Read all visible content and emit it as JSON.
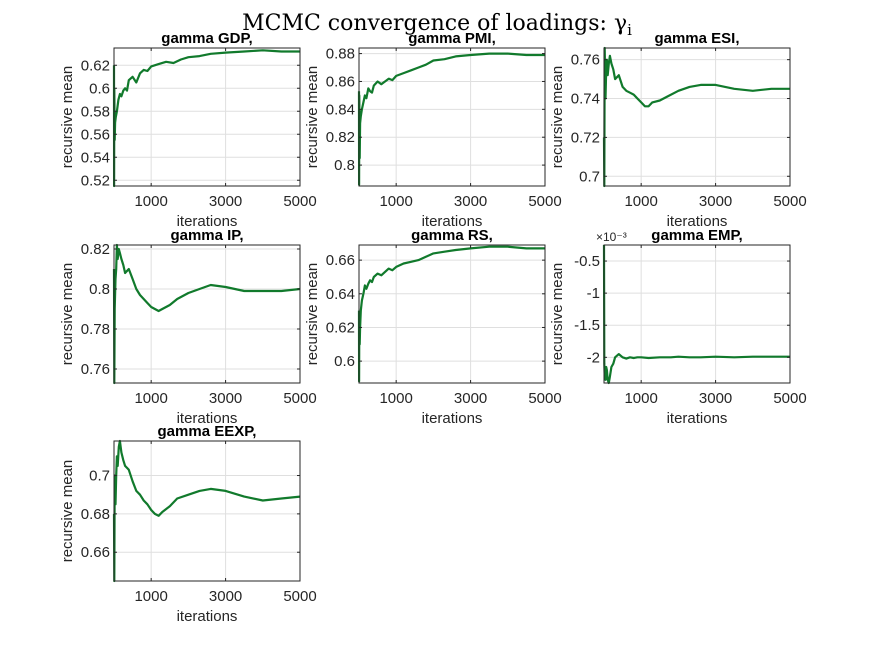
{
  "figure": {
    "title": "MCMC convergence of loadings: γ",
    "title_subscript": "i"
  },
  "colors": {
    "line": "#117a2c",
    "grid": "#dfdfdf",
    "axis": "#262626"
  },
  "chart_data": [
    {
      "type": "line",
      "title": "gamma GDP,",
      "xlabel": "iterations",
      "ylabel": "recursive mean",
      "xlim": [
        1,
        5000
      ],
      "ylim": [
        0.515,
        0.635
      ],
      "xticks": [
        1000,
        3000,
        5000
      ],
      "yticks": [
        0.52,
        0.54,
        0.56,
        0.58,
        0.6,
        0.62
      ],
      "ytick_labels": [
        "0.52",
        "0.54",
        "0.56",
        "0.58",
        "0.6",
        "0.62"
      ],
      "exponent_label": "",
      "grid": true,
      "x": [
        1,
        5,
        10,
        20,
        30,
        50,
        80,
        120,
        160,
        200,
        250,
        300,
        350,
        400,
        500,
        600,
        700,
        800,
        900,
        1000,
        1200,
        1400,
        1600,
        1800,
        2000,
        2300,
        2600,
        3000,
        3500,
        4000,
        4500,
        5000
      ],
      "y": [
        0.62,
        0.515,
        0.6,
        0.555,
        0.57,
        0.575,
        0.58,
        0.59,
        0.595,
        0.593,
        0.598,
        0.6,
        0.598,
        0.607,
        0.61,
        0.605,
        0.613,
        0.616,
        0.615,
        0.619,
        0.621,
        0.623,
        0.622,
        0.625,
        0.627,
        0.628,
        0.63,
        0.631,
        0.632,
        0.633,
        0.632,
        0.632
      ]
    },
    {
      "type": "line",
      "title": "gamma PMI,",
      "xlabel": "iterations",
      "ylabel": "recursive mean",
      "xlim": [
        1,
        5000
      ],
      "ylim": [
        0.785,
        0.884
      ],
      "xticks": [
        1000,
        3000,
        5000
      ],
      "yticks": [
        0.8,
        0.82,
        0.84,
        0.86,
        0.88
      ],
      "ytick_labels": [
        "0.8",
        "0.82",
        "0.84",
        "0.86",
        "0.88"
      ],
      "exponent_label": "",
      "grid": true,
      "x": [
        1,
        5,
        10,
        20,
        30,
        50,
        80,
        120,
        160,
        200,
        250,
        300,
        350,
        400,
        500,
        600,
        700,
        800,
        900,
        1000,
        1200,
        1400,
        1600,
        1800,
        2000,
        2300,
        2600,
        3000,
        3500,
        4000,
        4500,
        5000
      ],
      "y": [
        0.853,
        0.786,
        0.85,
        0.805,
        0.83,
        0.835,
        0.84,
        0.845,
        0.85,
        0.848,
        0.855,
        0.853,
        0.852,
        0.857,
        0.86,
        0.858,
        0.86,
        0.862,
        0.861,
        0.864,
        0.866,
        0.868,
        0.87,
        0.872,
        0.875,
        0.876,
        0.878,
        0.879,
        0.88,
        0.88,
        0.879,
        0.879
      ]
    },
    {
      "type": "line",
      "title": "gamma ESI,",
      "xlabel": "iterations",
      "ylabel": "recursive mean",
      "xlim": [
        1,
        5000
      ],
      "ylim": [
        0.695,
        0.766
      ],
      "xticks": [
        1000,
        3000,
        5000
      ],
      "yticks": [
        0.7,
        0.72,
        0.74,
        0.76
      ],
      "ytick_labels": [
        "0.7",
        "0.72",
        "0.74",
        "0.76"
      ],
      "exponent_label": "",
      "grid": true,
      "x": [
        1,
        10,
        20,
        40,
        60,
        80,
        100,
        130,
        160,
        200,
        250,
        300,
        400,
        500,
        600,
        700,
        800,
        900,
        1000,
        1100,
        1200,
        1300,
        1500,
        1700,
        2000,
        2300,
        2600,
        3000,
        3500,
        4000,
        4500,
        5000
      ],
      "y": [
        0.72,
        0.695,
        0.766,
        0.74,
        0.755,
        0.76,
        0.752,
        0.758,
        0.762,
        0.758,
        0.755,
        0.75,
        0.752,
        0.746,
        0.744,
        0.743,
        0.742,
        0.74,
        0.738,
        0.736,
        0.736,
        0.738,
        0.739,
        0.741,
        0.744,
        0.746,
        0.747,
        0.747,
        0.745,
        0.744,
        0.745,
        0.745
      ]
    },
    {
      "type": "line",
      "title": "gamma IP,",
      "xlabel": "iterations",
      "ylabel": "recursive mean",
      "xlim": [
        1,
        5000
      ],
      "ylim": [
        0.753,
        0.822
      ],
      "xticks": [
        1000,
        3000,
        5000
      ],
      "yticks": [
        0.76,
        0.78,
        0.8,
        0.82
      ],
      "ytick_labels": [
        "0.76",
        "0.78",
        "0.8",
        "0.82"
      ],
      "exponent_label": "",
      "grid": true,
      "x": [
        1,
        10,
        20,
        40,
        60,
        80,
        100,
        130,
        160,
        200,
        250,
        300,
        400,
        500,
        600,
        700,
        800,
        900,
        1000,
        1100,
        1200,
        1300,
        1500,
        1700,
        2000,
        2300,
        2600,
        3000,
        3500,
        4000,
        4500,
        5000
      ],
      "y": [
        0.81,
        0.753,
        0.79,
        0.805,
        0.81,
        0.822,
        0.815,
        0.82,
        0.818,
        0.815,
        0.812,
        0.808,
        0.81,
        0.805,
        0.8,
        0.797,
        0.795,
        0.793,
        0.791,
        0.79,
        0.789,
        0.79,
        0.792,
        0.795,
        0.798,
        0.8,
        0.802,
        0.801,
        0.799,
        0.799,
        0.799,
        0.8
      ]
    },
    {
      "type": "line",
      "title": "gamma RS,",
      "xlabel": "iterations",
      "ylabel": "recursive mean",
      "xlim": [
        1,
        5000
      ],
      "ylim": [
        0.587,
        0.669
      ],
      "xticks": [
        1000,
        3000,
        5000
      ],
      "yticks": [
        0.6,
        0.62,
        0.64,
        0.66
      ],
      "ytick_labels": [
        "0.6",
        "0.62",
        "0.64",
        "0.66"
      ],
      "exponent_label": "",
      "grid": true,
      "x": [
        1,
        5,
        10,
        20,
        30,
        50,
        80,
        120,
        160,
        200,
        250,
        300,
        350,
        400,
        500,
        600,
        700,
        800,
        900,
        1000,
        1200,
        1400,
        1600,
        1800,
        2000,
        2300,
        2600,
        3000,
        3500,
        4000,
        4500,
        5000
      ],
      "y": [
        0.63,
        0.588,
        0.625,
        0.61,
        0.62,
        0.63,
        0.636,
        0.64,
        0.645,
        0.643,
        0.646,
        0.648,
        0.647,
        0.65,
        0.652,
        0.651,
        0.653,
        0.655,
        0.654,
        0.656,
        0.658,
        0.659,
        0.66,
        0.662,
        0.664,
        0.665,
        0.666,
        0.667,
        0.668,
        0.668,
        0.667,
        0.667
      ]
    },
    {
      "type": "line",
      "title": "gamma EMP,",
      "xlabel": "iterations",
      "ylabel": "recursive mean",
      "xlim": [
        1,
        5000
      ],
      "ylim": [
        -0.0024,
        -0.00025
      ],
      "xticks": [
        1000,
        3000,
        5000
      ],
      "yticks": [
        -0.002,
        -0.0015,
        -0.001,
        -0.0005
      ],
      "ytick_labels": [
        "-2",
        "-1.5",
        "-1",
        "-0.5"
      ],
      "exponent_label": "×10⁻³",
      "grid": true,
      "x": [
        1,
        10,
        20,
        40,
        60,
        80,
        100,
        130,
        160,
        200,
        250,
        300,
        400,
        500,
        600,
        700,
        800,
        900,
        1000,
        1200,
        1500,
        1800,
        2000,
        2300,
        2600,
        3000,
        3500,
        4000,
        4500,
        5000
      ],
      "y": [
        -0.00025,
        -0.0021,
        -0.0023,
        -0.00235,
        -0.00215,
        -0.0022,
        -0.00235,
        -0.0024,
        -0.0023,
        -0.00215,
        -0.0021,
        -0.002,
        -0.00195,
        -0.002,
        -0.00202,
        -0.002,
        -0.00201,
        -0.002,
        -0.002,
        -0.00201,
        -0.002,
        -0.002,
        -0.00199,
        -0.002,
        -0.002,
        -0.00199,
        -0.002,
        -0.00199,
        -0.00199,
        -0.00199
      ]
    },
    {
      "type": "line",
      "title": "gamma EEXP,",
      "xlabel": "iterations",
      "ylabel": "recursive mean",
      "xlim": [
        1,
        5000
      ],
      "ylim": [
        0.645,
        0.718
      ],
      "xticks": [
        1000,
        3000,
        5000
      ],
      "yticks": [
        0.66,
        0.68,
        0.7
      ],
      "ytick_labels": [
        "0.66",
        "0.68",
        "0.7"
      ],
      "exponent_label": "",
      "grid": true,
      "x": [
        1,
        10,
        20,
        40,
        60,
        80,
        100,
        130,
        160,
        200,
        250,
        300,
        400,
        500,
        600,
        700,
        800,
        900,
        1000,
        1100,
        1200,
        1300,
        1500,
        1700,
        2000,
        2300,
        2600,
        3000,
        3500,
        4000,
        4500,
        5000
      ],
      "y": [
        0.68,
        0.645,
        0.7,
        0.685,
        0.7,
        0.71,
        0.705,
        0.715,
        0.718,
        0.712,
        0.708,
        0.705,
        0.703,
        0.697,
        0.692,
        0.69,
        0.687,
        0.685,
        0.682,
        0.68,
        0.679,
        0.681,
        0.684,
        0.688,
        0.69,
        0.692,
        0.693,
        0.692,
        0.689,
        0.687,
        0.688,
        0.689
      ]
    }
  ]
}
